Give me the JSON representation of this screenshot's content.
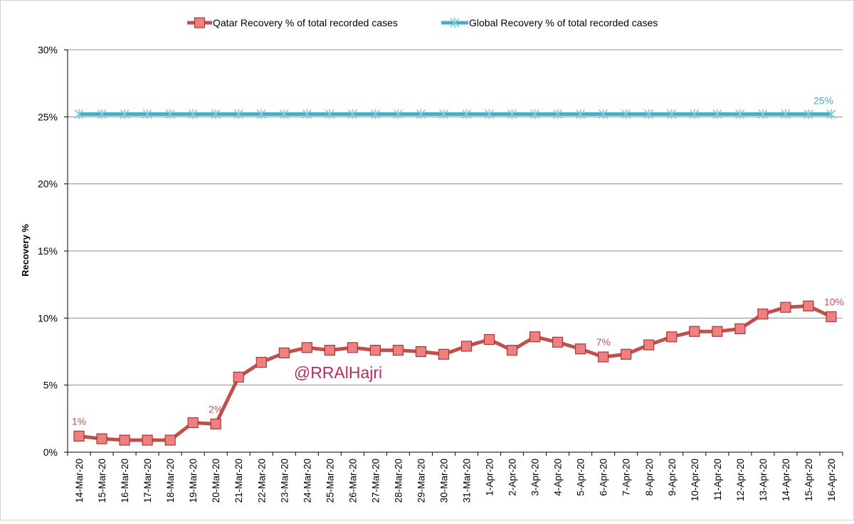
{
  "chart_data": {
    "type": "line",
    "title": "",
    "xlabel": "",
    "ylabel": "Recovery %",
    "ylim": [
      0,
      30
    ],
    "yticks": [
      "0%",
      "5%",
      "10%",
      "15%",
      "20%",
      "25%",
      "30%"
    ],
    "ytick_values": [
      0,
      5,
      10,
      15,
      20,
      25,
      30
    ],
    "categories": [
      "14-Mar-20",
      "15-Mar-20",
      "16-Mar-20",
      "17-Mar-20",
      "18-Mar-20",
      "19-Mar-20",
      "20-Mar-20",
      "21-Mar-20",
      "22-Mar-20",
      "23-Mar-20",
      "24-Mar-20",
      "25-Mar-20",
      "26-Mar-20",
      "27-Mar-20",
      "28-Mar-20",
      "29-Mar-20",
      "30-Mar-20",
      "31-Mar-20",
      "1-Apr-20",
      "2-Apr-20",
      "3-Apr-20",
      "4-Apr-20",
      "5-Apr-20",
      "6-Apr-20",
      "7-Apr-20",
      "8-Apr-20",
      "9-Apr-20",
      "10-Apr-20",
      "11-Apr-20",
      "12-Apr-20",
      "13-Apr-20",
      "14-Apr-20",
      "15-Apr-20",
      "16-Apr-20"
    ],
    "series": [
      {
        "name": "Qatar Recovery % of total recorded cases",
        "color": "#c0504d",
        "marker_fill": "#f08080",
        "values": [
          1.2,
          1.0,
          0.9,
          0.9,
          0.9,
          2.2,
          2.1,
          5.6,
          6.7,
          7.4,
          7.8,
          7.6,
          7.8,
          7.6,
          7.6,
          7.5,
          7.3,
          7.9,
          8.4,
          7.6,
          8.6,
          8.2,
          7.7,
          7.1,
          7.3,
          8.0,
          8.6,
          9.0,
          9.0,
          9.2,
          10.3,
          10.8,
          10.9,
          10.1
        ],
        "data_labels": [
          {
            "index": 0,
            "text": "1%"
          },
          {
            "index": 6,
            "text": "2%"
          },
          {
            "index": 23,
            "text": "7%"
          },
          {
            "index": 33,
            "text": "10%"
          }
        ]
      },
      {
        "name": "Global Recovery % of total recorded cases",
        "color": "#4bacc6",
        "values": [
          25.2,
          25.2,
          25.2,
          25.2,
          25.2,
          25.2,
          25.2,
          25.2,
          25.2,
          25.2,
          25.2,
          25.2,
          25.2,
          25.2,
          25.2,
          25.2,
          25.2,
          25.2,
          25.2,
          25.2,
          25.2,
          25.2,
          25.2,
          25.2,
          25.2,
          25.2,
          25.2,
          25.2,
          25.2,
          25.2,
          25.2,
          25.2,
          25.2,
          25.2
        ],
        "data_labels": [
          {
            "index": 33,
            "text": "25%"
          }
        ]
      }
    ],
    "legend_position": "top-center",
    "grid": true,
    "annotations": [
      {
        "text": "@RRAlHajri",
        "color": "#b03060"
      }
    ]
  }
}
